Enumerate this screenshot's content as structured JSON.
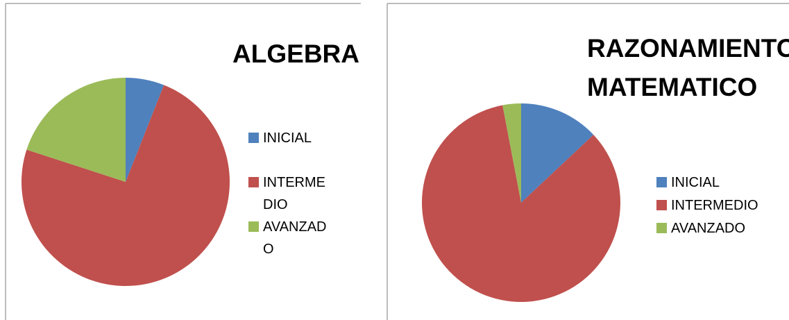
{
  "chart_data": [
    {
      "type": "pie",
      "title": "ALGEBRA",
      "categories": [
        "INICIAL",
        "INTERMEDIO",
        "AVANZADO"
      ],
      "values": [
        6,
        74,
        20
      ],
      "colors": [
        "#4f81bd",
        "#c0504d",
        "#9bbb59"
      ],
      "legend": "right"
    },
    {
      "type": "pie",
      "title": "RAZONAMIENTO MATEMATICO",
      "categories": [
        "INICIAL",
        "INTERMEDIO",
        "AVANZADO"
      ],
      "values": [
        13,
        84,
        3
      ],
      "colors": [
        "#4f81bd",
        "#c0504d",
        "#9bbb59"
      ],
      "legend": "right"
    }
  ]
}
